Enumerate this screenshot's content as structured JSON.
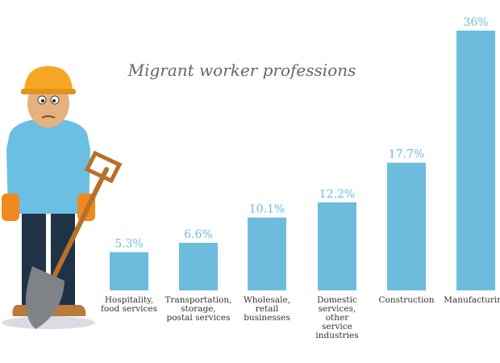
{
  "title": "Migrant worker professions",
  "colors": {
    "bar": "#6dbcde",
    "value_label": "#6dbcde",
    "title": "#666666"
  },
  "chart_data": {
    "type": "bar",
    "title": "Migrant worker professions",
    "categories": [
      [
        "Hospitality,",
        "food services"
      ],
      [
        "Transportation,",
        "storage,",
        "postal services"
      ],
      [
        "Wholesale,",
        "retail",
        "businesses"
      ],
      [
        "Domestic",
        "services,",
        "other",
        "service",
        "industries"
      ],
      [
        "Construction"
      ],
      [
        "Manufacturing"
      ]
    ],
    "values": [
      5.3,
      6.6,
      10.1,
      12.2,
      17.7,
      36
    ],
    "labels": [
      "5.3%",
      "6.6%",
      "10.1%",
      "12.2%",
      "17.7%",
      "36%"
    ],
    "ylim": [
      0,
      36
    ],
    "grid": false,
    "legend": "none"
  },
  "illustration": {
    "icon": "construction-worker-with-shovel-icon"
  }
}
